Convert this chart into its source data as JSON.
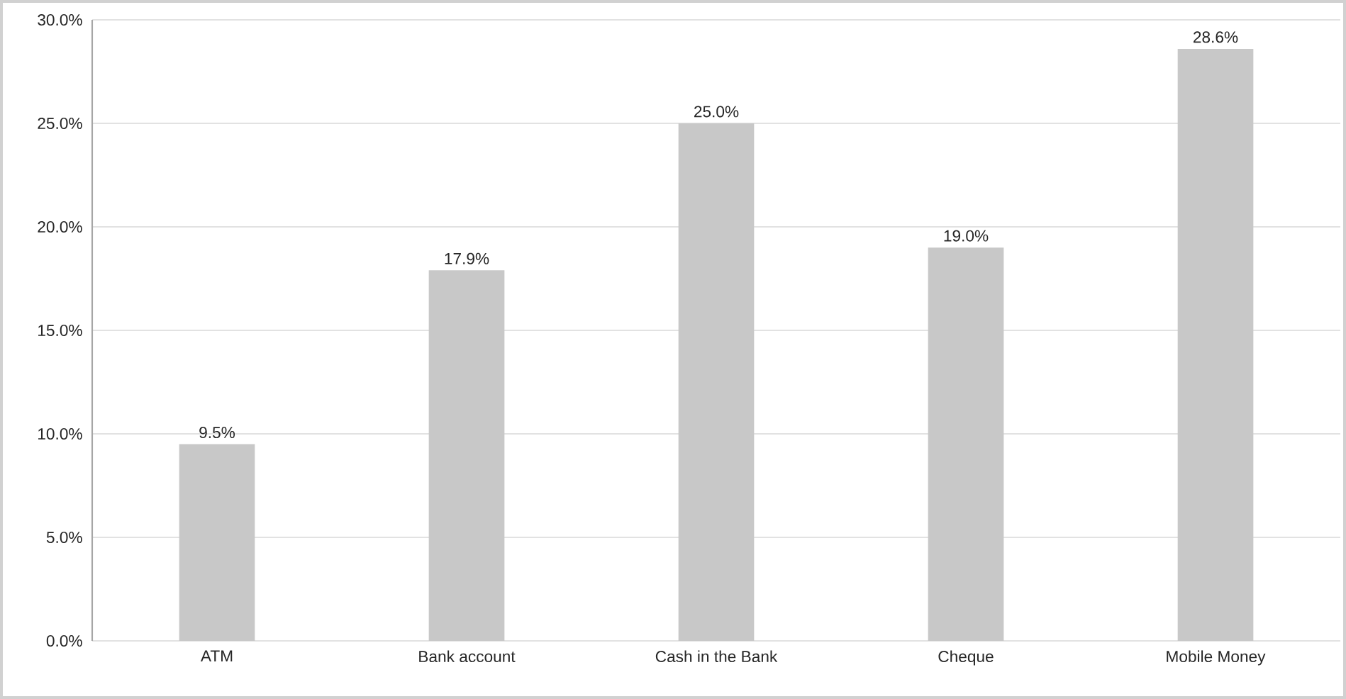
{
  "chart_data": {
    "type": "bar",
    "categories": [
      "ATM",
      "Bank account",
      "Cash in the Bank",
      "Cheque",
      "Mobile Money"
    ],
    "values": [
      9.5,
      17.9,
      25.0,
      19.0,
      28.6
    ],
    "value_labels": [
      "9.5%",
      "17.9%",
      "25.0%",
      "19.0%",
      "28.6%"
    ],
    "color": "#c8c8c8",
    "ylim": [
      0,
      30
    ],
    "yticks": [
      {
        "value": 0,
        "label": "0.0%"
      },
      {
        "value": 5,
        "label": "5.0%"
      },
      {
        "value": 10,
        "label": "10.0%"
      },
      {
        "value": 15,
        "label": "15.0%"
      },
      {
        "value": 20,
        "label": "20.0%"
      },
      {
        "value": 25,
        "label": "25.0%"
      },
      {
        "value": 30,
        "label": "30.0%"
      }
    ],
    "grid": "y"
  }
}
